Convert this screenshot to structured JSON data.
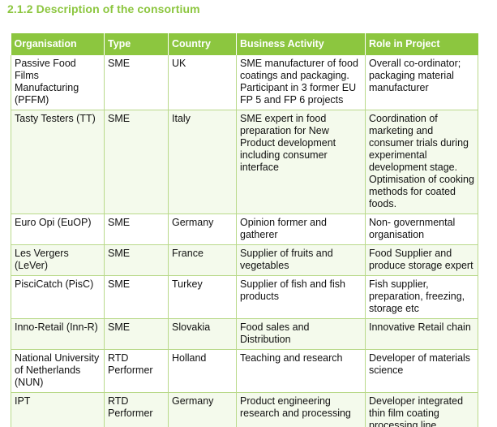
{
  "section": {
    "title": "2.1.2 Description of the consortium"
  },
  "table": {
    "headers": [
      "Organisation",
      "Type",
      "Country",
      "Business Activity",
      "Role in Project"
    ],
    "rows": [
      {
        "organisation": "Passive Food Films Manufacturing (PFFM)",
        "type": "SME",
        "country": "UK",
        "activity": "SME manufacturer of food coatings and packaging. Participant in 3 former EU FP 5 and FP 6 projects",
        "role": "Overall co-ordinator; packaging material manufacturer"
      },
      {
        "organisation": "Tasty Testers (TT)",
        "type": "SME",
        "country": "Italy",
        "activity": "SME expert in food preparation for New Product development including consumer interface",
        "role": "Coordination of marketing and consumer trials during experimental development stage. Optimisation of cooking methods for coated foods."
      },
      {
        "organisation": "Euro Opi (EuOP)",
        "type": "SME",
        "country": "Germany",
        "activity": "Opinion former and gatherer",
        "role": "Non- governmental organisation"
      },
      {
        "organisation": "Les Vergers (LeVer)",
        "type": "SME",
        "country": "France",
        "activity": "Supplier of fruits and vegetables",
        "role": "Food Supplier and produce storage expert"
      },
      {
        "organisation": "PisciCatch (PisC)",
        "type": "SME",
        "country": "Turkey",
        "activity": "Supplier of fish and fish products",
        "role": "Fish supplier, preparation, freezing, storage etc"
      },
      {
        "organisation": "Inno-Retail (Inn-R)",
        "type": "SME",
        "country": "Slovakia",
        "activity": "Food sales and Distribution",
        "role": "Innovative Retail chain"
      },
      {
        "organisation": "National University of Netherlands (NUN)",
        "type": "RTD Performer",
        "country": "Holland",
        "activity": "Teaching and research",
        "role": "Developer of materials science"
      },
      {
        "organisation": "IPT",
        "type": "RTD Performer",
        "country": "Germany",
        "activity": "Product engineering research and processing",
        "role": "Developer integrated thin film coating processing line"
      }
    ]
  },
  "colors": {
    "accent": "#8cc63f",
    "border": "#b9d98a"
  }
}
